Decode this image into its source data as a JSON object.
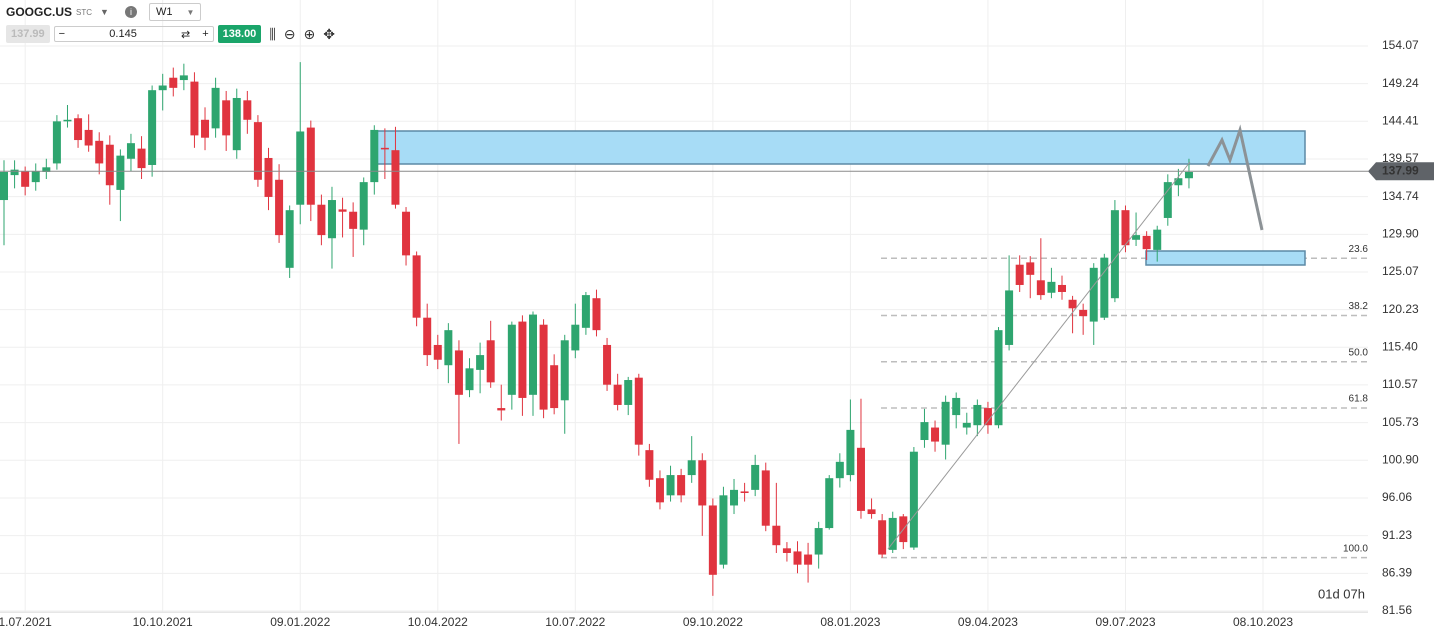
{
  "toolbar": {
    "symbol": "GOOGC.US",
    "market": "STC",
    "interval": "W1",
    "bid": 137.99,
    "spread": 0.145,
    "ask": {
      "value": 138,
      "label": "138.00"
    }
  },
  "chart_data": {
    "type": "candlestick",
    "categories": [
      null,
      null,
      "1.07.2021",
      null,
      null,
      null,
      null,
      null,
      null,
      null,
      null,
      null,
      null,
      null,
      null,
      "10.10.2021",
      null,
      null,
      null,
      null,
      null,
      null,
      null,
      null,
      null,
      null,
      null,
      null,
      "09.01.2022",
      null,
      null,
      null,
      null,
      null,
      null,
      null,
      null,
      null,
      null,
      null,
      null,
      "10.04.2022",
      null,
      null,
      null,
      null,
      null,
      null,
      null,
      null,
      null,
      null,
      null,
      null,
      "10.07.2022",
      null,
      null,
      null,
      null,
      null,
      null,
      null,
      null,
      null,
      null,
      null,
      null,
      "09.10.2022",
      null,
      null,
      null,
      null,
      null,
      null,
      null,
      null,
      null,
      null,
      null,
      null,
      "08.01.2023",
      null,
      null,
      null,
      null,
      null,
      null,
      null,
      null,
      null,
      null,
      null,
      null,
      "09.04.2023",
      null,
      null,
      null,
      null,
      null,
      null,
      null,
      null,
      null,
      null,
      null,
      null,
      "09.07.2023",
      null,
      null,
      null,
      null,
      null,
      null,
      null,
      null,
      null,
      null,
      null,
      null,
      "08.10.2023",
      null,
      null,
      null,
      null,
      null,
      null,
      null,
      null,
      null
    ],
    "open": [
      134.3,
      137.5,
      138.0,
      136.6,
      137.9,
      139.0,
      144.4,
      144.8,
      143.3,
      141.9,
      141.4,
      135.6,
      139.6,
      140.9,
      138.8,
      148.4,
      150.0,
      149.7,
      149.5,
      144.6,
      143.5,
      147.1,
      140.7,
      147.1,
      144.3,
      139.7,
      136.9,
      125.6,
      133.7,
      143.6,
      133.7,
      129.4,
      133.1,
      132.8,
      130.5,
      136.6,
      141.0,
      140.7,
      132.8,
      127.2,
      119.2,
      115.7,
      113.1,
      115.0,
      109.9,
      112.5,
      116.3,
      107.6,
      109.3,
      118.7,
      109.3,
      118.3,
      113.1,
      108.6,
      115.0,
      117.9,
      121.7,
      115.7,
      110.6,
      108.0,
      111.5,
      102.2,
      98.6,
      96.4,
      99.0,
      99.0,
      100.9,
      95.1,
      87.5,
      95.1,
      96.9,
      97.1,
      99.6,
      92.5,
      89.6,
      89.2,
      88.8,
      88.8,
      92.2,
      98.6,
      99.0,
      102.5,
      94.6,
      93.2,
      89.4,
      93.7,
      89.7,
      103.5,
      105.1,
      102.9,
      106.7,
      105.1,
      105.4,
      107.6,
      105.4,
      115.7,
      126.0,
      126.3,
      124.0,
      122.4,
      123.4,
      121.5,
      120.2,
      118.7,
      119.2,
      121.7,
      133.0,
      129.2,
      129.7,
      127.9,
      132.0,
      136.2,
      137.1,
      null,
      null,
      null,
      null,
      null,
      null,
      null,
      null,
      null,
      null,
      null,
      null,
      null,
      null,
      null,
      null
    ],
    "high": [
      139.4,
      139.4,
      138.6,
      139.0,
      139.6,
      145.2,
      146.5,
      145.3,
      145.3,
      143.0,
      142.6,
      140.8,
      142.8,
      142.5,
      149.0,
      150.5,
      151.3,
      151.8,
      150.7,
      146.2,
      150.0,
      148.3,
      148.6,
      148.3,
      145.2,
      141.0,
      138.9,
      133.6,
      152.0,
      144.5,
      135.0,
      136.0,
      134.6,
      134.0,
      137.2,
      143.9,
      143.5,
      143.7,
      133.4,
      127.7,
      121.0,
      117.0,
      118.5,
      116.3,
      114.0,
      116.0,
      118.8,
      110.6,
      118.7,
      119.5,
      120.0,
      119.0,
      114.5,
      117.0,
      121.0,
      122.5,
      122.8,
      116.6,
      112.0,
      111.6,
      112.0,
      103.0,
      99.6,
      100.2,
      99.8,
      104.0,
      101.8,
      96.0,
      97.5,
      98.5,
      98.0,
      101.6,
      100.6,
      98.0,
      90.4,
      90.5,
      90.3,
      93.0,
      99.0,
      101.8,
      108.7,
      108.8,
      96.0,
      94.0,
      94.3,
      94.0,
      102.6,
      107.5,
      106.0,
      109.2,
      109.6,
      107.0,
      108.7,
      108.4,
      118.0,
      127.2,
      127.2,
      127.1,
      129.4,
      125.6,
      124.6,
      122.0,
      121.0,
      126.2,
      127.4,
      134.3,
      133.6,
      132.7,
      130.3,
      131.0,
      137.6,
      138.3,
      139.6,
      null,
      null,
      null,
      null,
      null,
      null,
      null,
      null,
      null,
      null,
      null,
      null,
      null,
      null,
      null,
      null
    ],
    "low": [
      128.5,
      135.8,
      134.9,
      135.5,
      137.0,
      138.2,
      143.6,
      141.0,
      140.5,
      137.6,
      133.7,
      131.6,
      138.0,
      137.0,
      137.3,
      145.8,
      147.6,
      148.4,
      141.0,
      140.7,
      142.3,
      140.6,
      139.6,
      142.8,
      136.0,
      133.0,
      128.8,
      124.3,
      131.2,
      131.6,
      128.5,
      125.5,
      129.5,
      127.0,
      128.5,
      135.0,
      137.0,
      133.2,
      125.9,
      118.1,
      113.0,
      112.6,
      110.8,
      103.0,
      109.0,
      109.5,
      110.2,
      106.0,
      107.4,
      106.6,
      106.6,
      106.3,
      106.8,
      104.3,
      114.0,
      117.0,
      116.8,
      109.8,
      107.3,
      106.7,
      101.5,
      97.5,
      94.6,
      95.6,
      95.5,
      98.0,
      91.2,
      83.5,
      87.0,
      94.0,
      95.6,
      96.3,
      91.8,
      89.0,
      87.9,
      86.4,
      85.2,
      87.0,
      92.0,
      97.4,
      98.2,
      93.4,
      93.4,
      88.4,
      89.0,
      89.5,
      89.4,
      102.5,
      102.0,
      101.0,
      105.0,
      104.2,
      104.0,
      104.3,
      105.0,
      115.0,
      122.5,
      121.7,
      121.5,
      121.7,
      121.5,
      117.2,
      117.0,
      115.7,
      118.9,
      121.2,
      127.6,
      128.4,
      126.6,
      126.4,
      131.0,
      134.8,
      135.8,
      null,
      null,
      null,
      null,
      null,
      null,
      null,
      null,
      null,
      null,
      null,
      null,
      null,
      null,
      null,
      null
    ],
    "close": [
      137.9,
      138.2,
      136.0,
      138.0,
      138.5,
      144.4,
      144.6,
      142.0,
      141.3,
      139.0,
      136.2,
      140.0,
      141.6,
      138.4,
      148.4,
      149.0,
      148.7,
      150.3,
      142.6,
      142.3,
      148.7,
      142.6,
      147.4,
      144.6,
      136.9,
      134.7,
      129.8,
      133.0,
      143.1,
      133.7,
      129.8,
      134.3,
      132.8,
      130.6,
      136.6,
      143.3,
      140.8,
      133.7,
      127.2,
      119.2,
      114.4,
      113.8,
      117.6,
      109.3,
      112.7,
      114.4,
      110.9,
      107.3,
      118.3,
      108.9,
      119.6,
      107.4,
      107.6,
      116.3,
      118.3,
      122.1,
      117.6,
      110.6,
      108.0,
      111.2,
      102.9,
      98.4,
      95.5,
      99.0,
      96.4,
      100.9,
      95.1,
      86.2,
      96.4,
      97.1,
      96.7,
      100.3,
      92.5,
      90.0,
      89.0,
      87.5,
      87.5,
      92.2,
      98.6,
      100.7,
      104.8,
      94.4,
      94.0,
      88.8,
      93.5,
      90.4,
      102.0,
      105.8,
      103.3,
      108.4,
      108.9,
      105.7,
      108.0,
      105.4,
      117.6,
      122.7,
      123.4,
      124.7,
      122.1,
      123.8,
      122.5,
      120.4,
      119.4,
      125.6,
      126.9,
      133.0,
      128.5,
      129.8,
      128.0,
      130.5,
      136.6,
      137.1,
      137.9,
      null,
      null,
      null,
      null,
      null,
      null,
      null,
      null,
      null,
      null,
      null,
      null,
      null,
      null,
      null,
      null
    ],
    "up_color": "#2ea56f",
    "down_color": "#e0343f",
    "ylim": [
      81.4,
      159.0
    ],
    "yticks": [
      154.07,
      149.24,
      144.41,
      139.57,
      134.74,
      {
        "value": 129.9,
        "label": "129.90"
      },
      125.07,
      120.23,
      {
        "value": 115.4,
        "label": "115.40"
      },
      110.57,
      105.73,
      {
        "value": 100.9,
        "label": "100.90"
      },
      96.06,
      91.23,
      86.39,
      81.56
    ],
    "grid": true,
    "last_price": 137.99,
    "fib": {
      "levels": [
        23.6,
        38.2,
        {
          "value": 50,
          "label": "50.0"
        },
        61.8,
        {
          "value": 100,
          "label": "100.0"
        }
      ],
      "high": 138.7,
      "low": 88.4
    },
    "countdown": "01d 07h"
  }
}
